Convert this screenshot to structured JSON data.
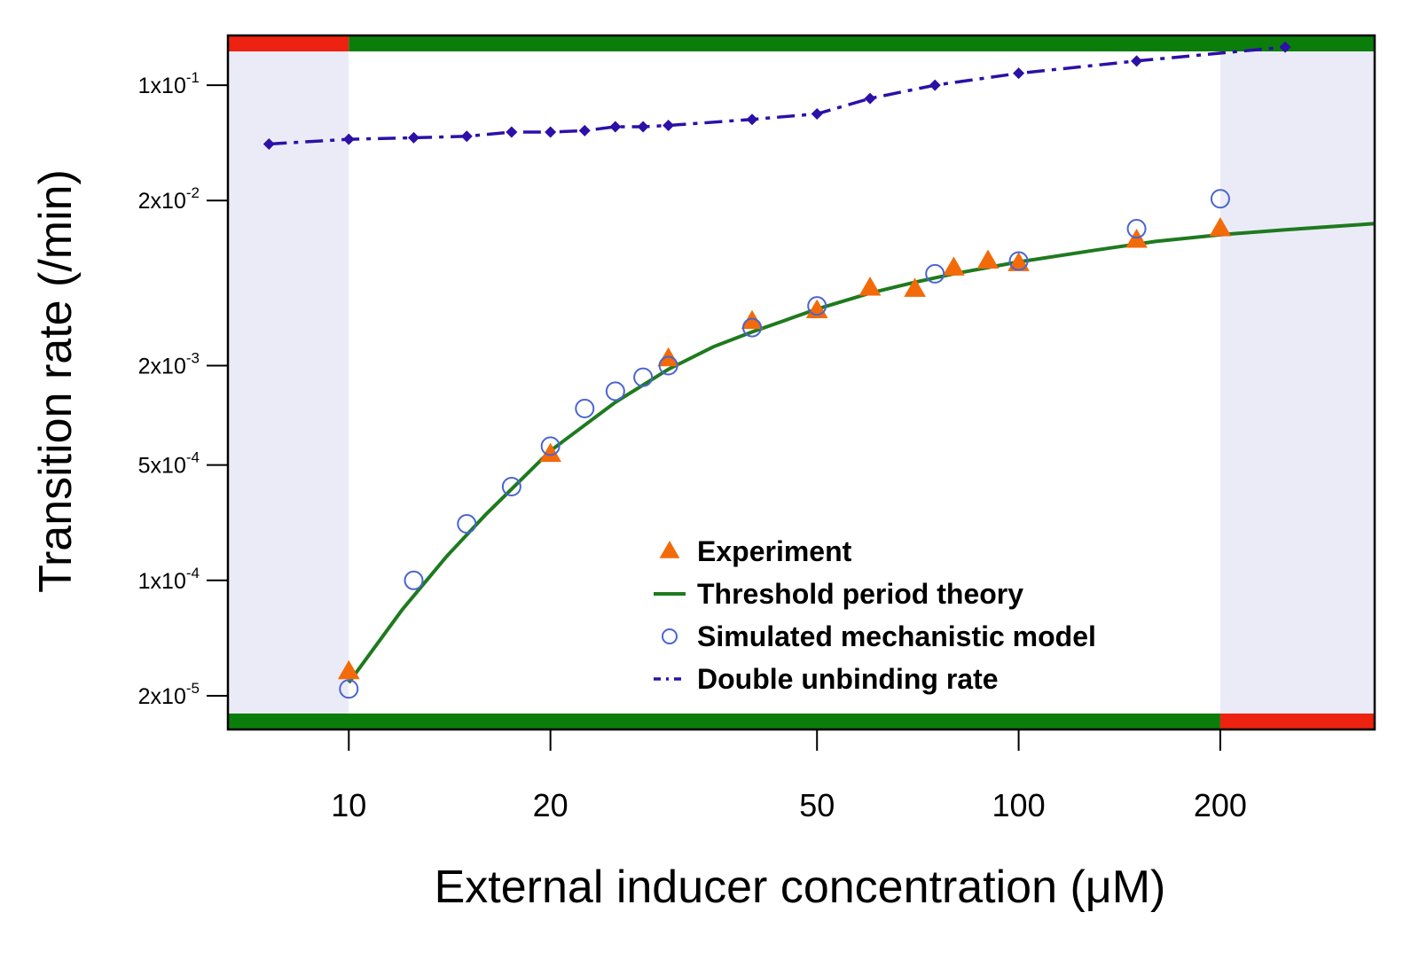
{
  "chart_data": {
    "type": "scatter",
    "xscale": "log",
    "yscale": "log",
    "xlabel": "External inducer concentration (μM)",
    "ylabel": "Transition rate  (/min)",
    "xlim": [
      6.6,
      340
    ],
    "ylim": [
      1.25e-05,
      0.2
    ],
    "xticks": [
      {
        "value": 10,
        "label": "10"
      },
      {
        "value": 20,
        "label": "20"
      },
      {
        "value": 50,
        "label": "50"
      },
      {
        "value": 100,
        "label": "100"
      },
      {
        "value": 200,
        "label": "200"
      }
    ],
    "yticks": [
      {
        "value": 2e-05,
        "mantissa": "2x10",
        "exp": "-5"
      },
      {
        "value": 0.0001,
        "mantissa": "1x10",
        "exp": "-4"
      },
      {
        "value": 0.0005,
        "mantissa": "5x10",
        "exp": "-4"
      },
      {
        "value": 0.002,
        "mantissa": "2x10",
        "exp": "-3"
      },
      {
        "value": 0.02,
        "mantissa": "2x10",
        "exp": "-2"
      },
      {
        "value": 0.1,
        "mantissa": "1x10",
        "exp": "-1"
      }
    ],
    "shaded_regions": [
      {
        "from": 6.6,
        "to": 10,
        "color": "#ebebf7"
      },
      {
        "from": 200,
        "to": 340,
        "color": "#ebebf7"
      }
    ],
    "top_bar": [
      {
        "from": 6.6,
        "to": 10,
        "color": "#ee2211"
      },
      {
        "from": 10,
        "to": 340,
        "color": "#0b7d0b"
      }
    ],
    "bottom_bar": [
      {
        "from": 6.6,
        "to": 200,
        "color": "#0b7d0b"
      },
      {
        "from": 200,
        "to": 340,
        "color": "#ee2211"
      }
    ],
    "series": [
      {
        "name": "Experiment",
        "marker": "triangle",
        "color": "#f26a0a",
        "x": [
          10,
          20,
          30,
          40,
          50,
          60,
          70,
          80,
          90,
          100,
          150,
          200
        ],
        "y": [
          2.8e-05,
          0.00058,
          0.0022,
          0.0037,
          0.0043,
          0.0059,
          0.0058,
          0.0078,
          0.0086,
          0.0083,
          0.0115,
          0.0135
        ]
      },
      {
        "name": "Threshold period theory",
        "marker": "line",
        "color": "#1e7a1e",
        "x": [
          10,
          12,
          14,
          16,
          18,
          20,
          25,
          30,
          35,
          40,
          50,
          60,
          70,
          80,
          100,
          130,
          160,
          200,
          250,
          300,
          340
        ],
        "y": [
          2.4e-05,
          6.6e-05,
          0.00014,
          0.00025,
          0.0004,
          0.00061,
          0.0012,
          0.0019,
          0.0026,
          0.0032,
          0.0044,
          0.0055,
          0.0064,
          0.0072,
          0.0085,
          0.01,
          0.0113,
          0.0124,
          0.0133,
          0.014,
          0.0145
        ]
      },
      {
        "name": "Simulated mechanistic model",
        "marker": "open-circle",
        "color": "#4a64d0",
        "x": [
          10,
          12.5,
          15,
          17.5,
          20,
          22.5,
          25,
          27.5,
          30,
          40,
          50,
          75,
          100,
          150,
          200
        ],
        "y": [
          2.2e-05,
          0.0001,
          0.00022,
          0.00037,
          0.00065,
          0.0011,
          0.0014,
          0.0017,
          0.002,
          0.0034,
          0.0046,
          0.0072,
          0.0086,
          0.0135,
          0.0205
        ]
      },
      {
        "name": "Double unbinding rate",
        "marker": "diamond-dashdot",
        "color": "#2c10a8",
        "x": [
          7.6,
          10,
          12.5,
          15,
          17.5,
          20,
          22.5,
          25,
          27.5,
          30,
          40,
          50,
          60,
          75,
          100,
          150,
          250
        ],
        "y": [
          0.044,
          0.047,
          0.048,
          0.049,
          0.052,
          0.052,
          0.053,
          0.056,
          0.056,
          0.057,
          0.062,
          0.067,
          0.083,
          0.1,
          0.118,
          0.14,
          0.17
        ]
      }
    ],
    "legend": {
      "position": "bottom-center",
      "entries": [
        "Experiment",
        "Threshold period theory",
        "Simulated mechanistic model",
        "Double unbinding rate"
      ]
    }
  }
}
